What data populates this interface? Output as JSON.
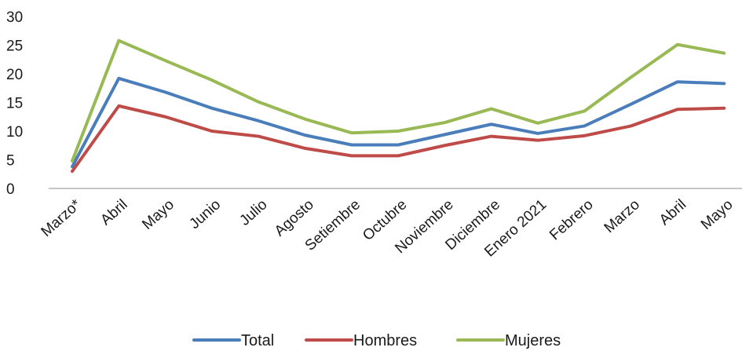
{
  "chart_data": {
    "type": "line",
    "title": "",
    "xlabel": "",
    "ylabel": "",
    "ylim": [
      0,
      30
    ],
    "yticks": [
      0,
      5,
      10,
      15,
      20,
      25,
      30
    ],
    "grid": false,
    "legend_position": "bottom",
    "categories": [
      "Marzo*",
      "Abril",
      "Mayo",
      "Junio",
      "Julio",
      "Agosto",
      "Setiembre",
      "Octubre",
      "Noviembre",
      "Diciembre",
      "Enero 2021",
      "Febrero",
      "Marzo",
      "Abril",
      "Mayo"
    ],
    "series": [
      {
        "name": "Total",
        "color": "#4a7ebb",
        "values": [
          3.8,
          19.2,
          16.8,
          14.0,
          11.8,
          9.3,
          7.6,
          7.6,
          9.4,
          11.2,
          9.6,
          10.9,
          14.7,
          18.6,
          18.3
        ]
      },
      {
        "name": "Hombres",
        "color": "#be4b48",
        "values": [
          3.0,
          14.4,
          12.5,
          10.0,
          9.1,
          7.0,
          5.7,
          5.7,
          7.5,
          9.1,
          8.4,
          9.2,
          10.9,
          13.8,
          14.0
        ]
      },
      {
        "name": "Mujeres",
        "color": "#98b954",
        "values": [
          4.8,
          25.8,
          22.3,
          18.9,
          15.1,
          12.1,
          9.7,
          10.0,
          11.5,
          13.9,
          11.4,
          13.5,
          19.4,
          25.1,
          23.6
        ]
      }
    ]
  }
}
